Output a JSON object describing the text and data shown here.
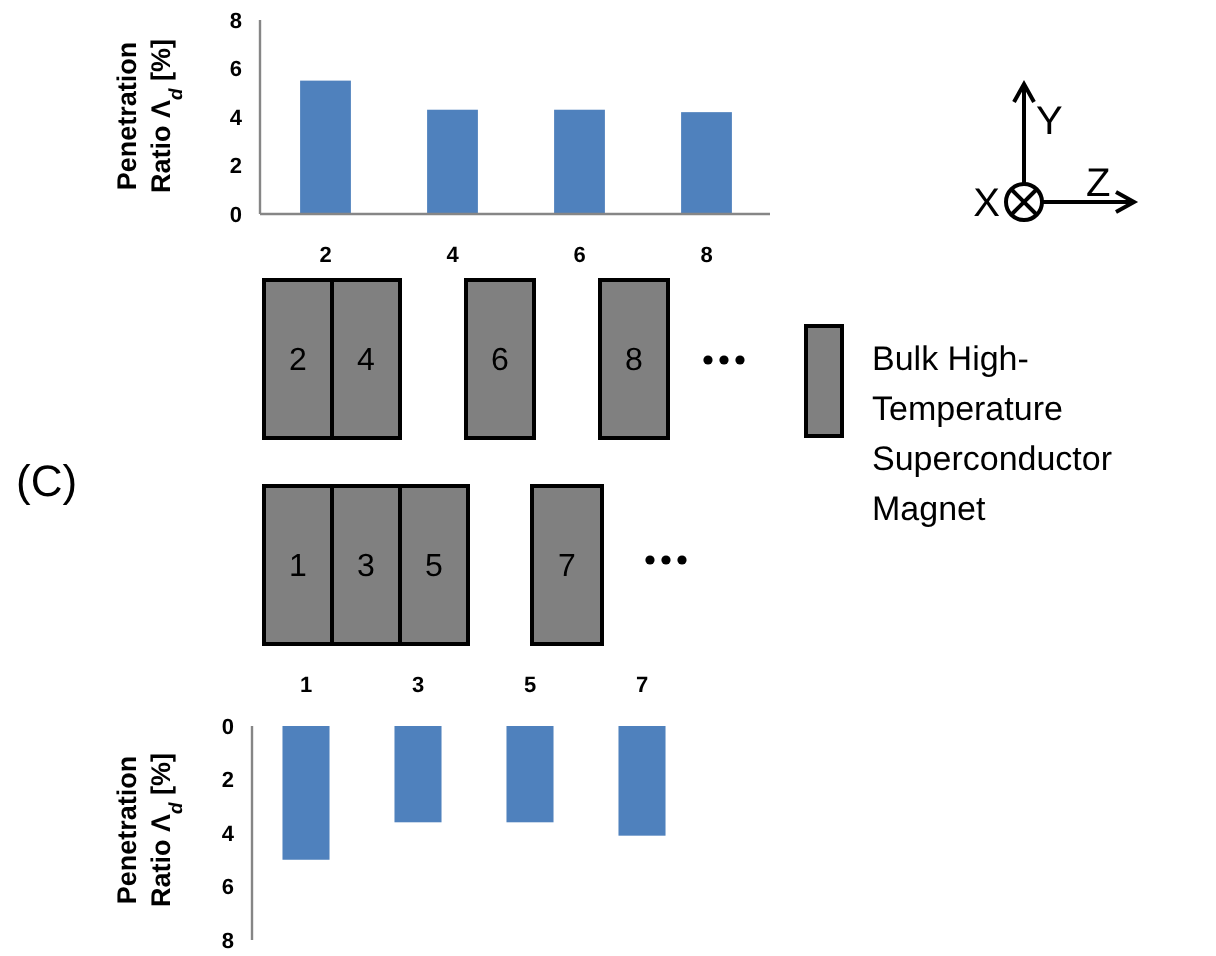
{
  "chart_data": [
    {
      "type": "bar",
      "ylabel": "Penetration Ratio Λ$_{d}$ [%]",
      "categories": [
        "2",
        "4",
        "6",
        "8"
      ],
      "values": [
        5.5,
        4.3,
        4.3,
        4.2
      ],
      "color": "#4f81bd",
      "ylim": [
        0,
        8
      ],
      "yticks": [
        0,
        2,
        4,
        6,
        8
      ],
      "grid": false
    },
    {
      "type": "bar",
      "ylabel": "Penetration Ratio Λ$_{d}$ [%]",
      "categories": [
        "1",
        "3",
        "5",
        "7"
      ],
      "values": [
        5.0,
        3.6,
        3.6,
        4.1
      ],
      "color": "#4f81bd",
      "ylim": [
        8,
        0
      ],
      "yticks": [
        0,
        2,
        4,
        6,
        8
      ],
      "grid": false
    },
    {
      "type": "other",
      "annotations": [
        "(C)",
        "2",
        "4",
        "6",
        "8",
        "1",
        "3",
        "5",
        "7",
        "Bulk High-Temperature Superconductor Magnet",
        "X",
        "Y",
        "Z"
      ]
    }
  ]
}
